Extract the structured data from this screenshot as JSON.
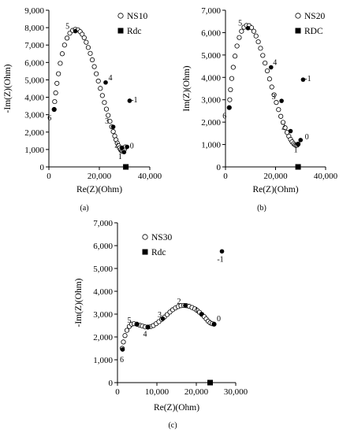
{
  "chart_data": [
    {
      "type": "scatter",
      "caption": "(a)",
      "xlabel": "Re(Z)(Ohm)",
      "ylabel": "-Im(Z)(Ohm)",
      "xlim": [
        0,
        40000
      ],
      "ylim": [
        0,
        9000
      ],
      "xticks": [
        0,
        20000,
        40000
      ],
      "xtick_labels": [
        "0",
        "20,000",
        "40,000"
      ],
      "yticks": [
        0,
        1000,
        2000,
        3000,
        4000,
        5000,
        6000,
        7000,
        8000,
        9000
      ],
      "ytick_labels": [
        "0",
        "1,000",
        "2,000",
        "3,000",
        "4,000",
        "5,000",
        "6,000",
        "7,000",
        "8,000",
        "9,000"
      ],
      "grid": false,
      "legend_position": "top-right",
      "series": [
        {
          "name": "NS10",
          "marker": "open-circle",
          "x": [
            2100,
            2300,
            2700,
            3200,
            3800,
            4500,
            5300,
            6200,
            7200,
            8300,
            9400,
            10500,
            11500,
            12400,
            13200,
            14000,
            14800,
            15600,
            16400,
            17200,
            18000,
            18800,
            19600,
            20400,
            21200,
            22000,
            22800,
            23500,
            24200,
            24900,
            25500,
            26100,
            26600,
            27100,
            27600,
            28000,
            28400,
            28800,
            29200,
            29600,
            30000,
            30300
          ],
          "y": [
            3300,
            3750,
            4250,
            4800,
            5350,
            5950,
            6500,
            7000,
            7400,
            7680,
            7840,
            7900,
            7870,
            7770,
            7620,
            7420,
            7160,
            6860,
            6520,
            6150,
            5760,
            5350,
            4930,
            4510,
            4100,
            3700,
            3320,
            2960,
            2620,
            2310,
            2030,
            1780,
            1560,
            1370,
            1220,
            1090,
            990,
            920,
            900,
            930,
            1020,
            1150
          ]
        },
        {
          "name": "Rdc",
          "marker": "filled-square",
          "x": [
            30500
          ],
          "y": [
            0
          ]
        }
      ],
      "markers": [
        {
          "label": "6",
          "x": 2100,
          "y": 3300
        },
        {
          "label": "5",
          "x": 10500,
          "y": 7800
        },
        {
          "label": "4",
          "x": 22500,
          "y": 4850
        },
        {
          "label": "3",
          "x": 25500,
          "y": 2300
        },
        {
          "label": "2",
          "x": 29000,
          "y": 1100
        },
        {
          "label": "1",
          "x": 29800,
          "y": 850
        },
        {
          "label": "0",
          "x": 31000,
          "y": 1150
        },
        {
          "label": "-1",
          "x": 32000,
          "y": 3800
        }
      ]
    },
    {
      "type": "scatter",
      "caption": "(b)",
      "xlabel": "Re(Z)(Ohm)",
      "ylabel": "Im(Z)(Ohm)",
      "xlim": [
        0,
        40000
      ],
      "ylim": [
        0,
        7000
      ],
      "xticks": [
        0,
        20000,
        40000
      ],
      "xtick_labels": [
        "0",
        "20,000",
        "40,000"
      ],
      "yticks": [
        0,
        1000,
        2000,
        3000,
        4000,
        5000,
        6000,
        7000
      ],
      "ytick_labels": [
        "0",
        "1,000",
        "2,000",
        "3,000",
        "4,000",
        "5,000",
        "6,000",
        "7,000"
      ],
      "grid": false,
      "legend_position": "top-right",
      "series": [
        {
          "name": "NS20",
          "marker": "open-circle",
          "x": [
            1500,
            1700,
            2000,
            2500,
            3100,
            3800,
            4600,
            5500,
            6400,
            7400,
            8400,
            9400,
            10400,
            11300,
            12200,
            13100,
            14000,
            14900,
            15800,
            16700,
            17600,
            18500,
            19400,
            20300,
            21200,
            22100,
            23000,
            23800,
            24600,
            25300,
            26000,
            26600,
            27200,
            27700,
            28200,
            28600,
            29000
          ],
          "y": [
            2650,
            3000,
            3450,
            3950,
            4450,
            4950,
            5400,
            5780,
            6060,
            6240,
            6320,
            6310,
            6220,
            6060,
            5850,
            5590,
            5300,
            4980,
            4640,
            4290,
            3930,
            3570,
            3220,
            2880,
            2560,
            2260,
            1990,
            1750,
            1540,
            1370,
            1230,
            1120,
            1040,
            990,
            960,
            970,
            1020
          ]
        },
        {
          "name": "RDC",
          "marker": "filled-square",
          "x": [
            29000
          ],
          "y": [
            0
          ]
        }
      ],
      "markers": [
        {
          "label": "6",
          "x": 1500,
          "y": 2650
        },
        {
          "label": "5",
          "x": 9000,
          "y": 6200
        },
        {
          "label": "4",
          "x": 18200,
          "y": 4450
        },
        {
          "label": "3",
          "x": 22400,
          "y": 2950
        },
        {
          "label": "2",
          "x": 26000,
          "y": 1600
        },
        {
          "label": "1",
          "x": 29000,
          "y": 1000
        },
        {
          "label": "0",
          "x": 30000,
          "y": 1200
        },
        {
          "label": "-1",
          "x": 31000,
          "y": 3900
        }
      ]
    },
    {
      "type": "scatter",
      "caption": "(c)",
      "xlabel": "Re(Z)(Ohm)",
      "ylabel": "-Im(Z)(Ohm)",
      "xlim": [
        0,
        30000
      ],
      "ylim": [
        0,
        7000
      ],
      "xticks": [
        0,
        10000,
        20000,
        30000
      ],
      "xtick_labels": [
        "0",
        "10,000",
        "20,000",
        "30,000"
      ],
      "yticks": [
        0,
        1000,
        2000,
        3000,
        4000,
        5000,
        6000,
        7000
      ],
      "ytick_labels": [
        "0",
        "1,000",
        "2,000",
        "3,000",
        "4,000",
        "5,000",
        "6,000",
        "7,000"
      ],
      "grid": false,
      "legend_position": "top-left",
      "series": [
        {
          "name": "NS30",
          "marker": "open-circle",
          "x": [
            1200,
            1500,
            1900,
            2400,
            3000,
            3600,
            4200,
            4900,
            5600,
            6300,
            7000,
            7700,
            8400,
            9100,
            9800,
            10500,
            11200,
            11900,
            12600,
            13300,
            14000,
            14700,
            15400,
            16100,
            16800,
            17500,
            18200,
            18900,
            19600,
            20200,
            20800,
            21400,
            22000,
            22500,
            23000,
            23500,
            24000,
            24500
          ],
          "y": [
            1500,
            1780,
            2060,
            2290,
            2460,
            2560,
            2580,
            2560,
            2520,
            2480,
            2440,
            2430,
            2450,
            2500,
            2580,
            2670,
            2770,
            2870,
            2980,
            3090,
            3190,
            3270,
            3330,
            3370,
            3380,
            3370,
            3340,
            3290,
            3230,
            3160,
            3080,
            2990,
            2890,
            2790,
            2690,
            2620,
            2580,
            2560
          ]
        },
        {
          "name": "Rdc",
          "marker": "filled-square",
          "x": [
            23500
          ],
          "y": [
            0
          ]
        }
      ],
      "markers": [
        {
          "label": "6",
          "x": 1300,
          "y": 1450
        },
        {
          "label": "5",
          "x": 5000,
          "y": 2550
        },
        {
          "label": "4",
          "x": 7800,
          "y": 2430
        },
        {
          "label": "3",
          "x": 11500,
          "y": 2800
        },
        {
          "label": "2",
          "x": 17200,
          "y": 3380
        },
        {
          "label": "1",
          "x": 21300,
          "y": 3000
        },
        {
          "label": "0",
          "x": 24500,
          "y": 2560
        },
        {
          "label": "-1",
          "x": 26500,
          "y": 5750
        }
      ]
    }
  ]
}
